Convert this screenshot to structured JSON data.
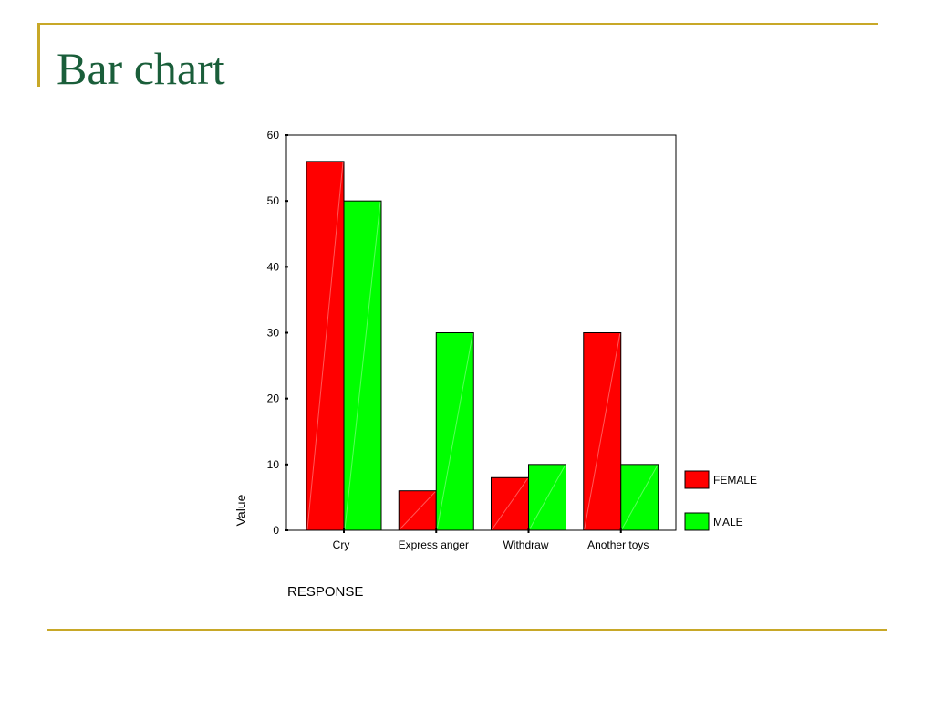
{
  "slide": {
    "title": "Bar chart"
  },
  "colors": {
    "accent": "#c8a828",
    "title": "#1a5e3a",
    "female": "#ff0000",
    "male": "#00ff00"
  },
  "chart_data": {
    "type": "bar",
    "categories": [
      "Cry",
      "Express anger",
      "Withdraw",
      "Another toys"
    ],
    "series": [
      {
        "name": "FEMALE",
        "values": [
          56,
          6,
          8,
          30
        ],
        "color": "#ff0000"
      },
      {
        "name": "MALE",
        "values": [
          50,
          30,
          10,
          10
        ],
        "color": "#00ff00"
      }
    ],
    "yticks": [
      0,
      10,
      20,
      30,
      40,
      50,
      60
    ],
    "ylim": [
      0,
      60
    ],
    "xlabel": "RESPONSE",
    "ylabel": "Value",
    "legend": "right",
    "grid": false
  }
}
